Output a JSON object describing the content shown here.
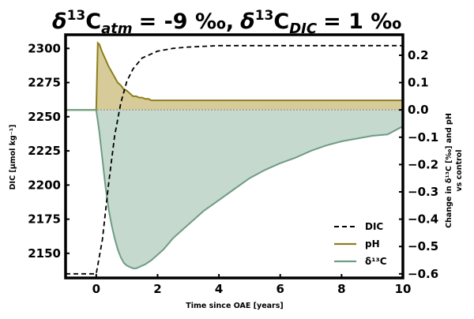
{
  "chart_data": {
    "type": "line",
    "title": {
      "d13c_atm_value": "= -9 ‰,",
      "d13c_dic_value": "= 1 ‰"
    },
    "xlabel": "Time since OAE [years]",
    "ylabel_left": "DIC [µmol kg⁻¹]",
    "ylabel_right_line1": "Change in δ¹³C [‰] and pH",
    "ylabel_right_line2": "vs control",
    "xlim": [
      -1,
      10
    ],
    "ylim_left": [
      2132,
      2310
    ],
    "ylim_right": [
      -0.615,
      0.275
    ],
    "x_ticks": [
      0,
      2,
      4,
      6,
      8,
      10
    ],
    "y_left_ticks": [
      2150,
      2175,
      2200,
      2225,
      2250,
      2275,
      2300
    ],
    "y_right_ticks": [
      0.2,
      0.1,
      0.0,
      -0.1,
      -0.2,
      -0.3,
      -0.4,
      -0.5,
      -0.6
    ],
    "y_right_tick_labels": [
      "0.2",
      "0.1",
      "0.0",
      "−0.1",
      "−0.2",
      "−0.3",
      "−0.4",
      "−0.5",
      "−0.6"
    ],
    "grid": false,
    "legend_position": "lower right",
    "colors": {
      "dic": "#000000",
      "ph_line": "#8c7f1c",
      "ph_fill": "#d8cb9a",
      "d13c_line": "#6f9c83",
      "d13c_fill": "#c5d9cf",
      "zero_line": "#888888"
    },
    "series": [
      {
        "name": "DIC",
        "axis": "left",
        "style": "dashed",
        "x": [
          -1,
          0,
          0.2,
          0.4,
          0.6,
          0.8,
          1.0,
          1.2,
          1.5,
          2.0,
          2.5,
          3.0,
          4.0,
          5.0,
          7.0,
          10.0
        ],
        "y": [
          2135,
          2135,
          2160,
          2200,
          2236,
          2260,
          2276,
          2285,
          2293,
          2298,
          2300,
          2301,
          2302,
          2302,
          2302,
          2302
        ]
      },
      {
        "name": "pH",
        "axis": "right",
        "style": "filled",
        "x": [
          -1,
          0,
          0.05,
          0.1,
          0.2,
          0.3,
          0.4,
          0.5,
          0.6,
          0.7,
          0.8,
          0.9,
          1.0,
          1.1,
          1.2,
          1.3,
          1.4,
          1.5,
          1.6,
          1.7,
          1.8,
          1.9,
          2.0,
          3.0,
          4.0,
          6.0,
          8.0,
          10.0
        ],
        "y": [
          0.0,
          0.0,
          0.245,
          0.24,
          0.21,
          0.185,
          0.16,
          0.14,
          0.12,
          0.1,
          0.09,
          0.075,
          0.07,
          0.06,
          0.05,
          0.05,
          0.045,
          0.045,
          0.04,
          0.04,
          0.035,
          0.035,
          0.035,
          0.035,
          0.035,
          0.035,
          0.035,
          0.035
        ]
      },
      {
        "name": "δ¹³C",
        "axis": "right",
        "style": "filled",
        "x": [
          -1,
          0,
          0.1,
          0.2,
          0.3,
          0.4,
          0.5,
          0.6,
          0.7,
          0.8,
          0.9,
          1.0,
          1.1,
          1.2,
          1.3,
          1.4,
          1.5,
          1.6,
          1.8,
          2.0,
          2.2,
          2.5,
          2.8,
          3.0,
          3.5,
          4.0,
          4.5,
          5.0,
          5.5,
          6.0,
          6.5,
          7.0,
          7.5,
          8.0,
          8.5,
          9.0,
          9.5,
          10.0
        ],
        "y": [
          0.0,
          0.0,
          -0.08,
          -0.18,
          -0.28,
          -0.36,
          -0.42,
          -0.47,
          -0.51,
          -0.54,
          -0.56,
          -0.57,
          -0.575,
          -0.58,
          -0.58,
          -0.575,
          -0.57,
          -0.565,
          -0.55,
          -0.53,
          -0.51,
          -0.47,
          -0.44,
          -0.42,
          -0.37,
          -0.33,
          -0.29,
          -0.25,
          -0.22,
          -0.195,
          -0.175,
          -0.15,
          -0.13,
          -0.115,
          -0.105,
          -0.095,
          -0.09,
          -0.06
        ]
      }
    ]
  }
}
